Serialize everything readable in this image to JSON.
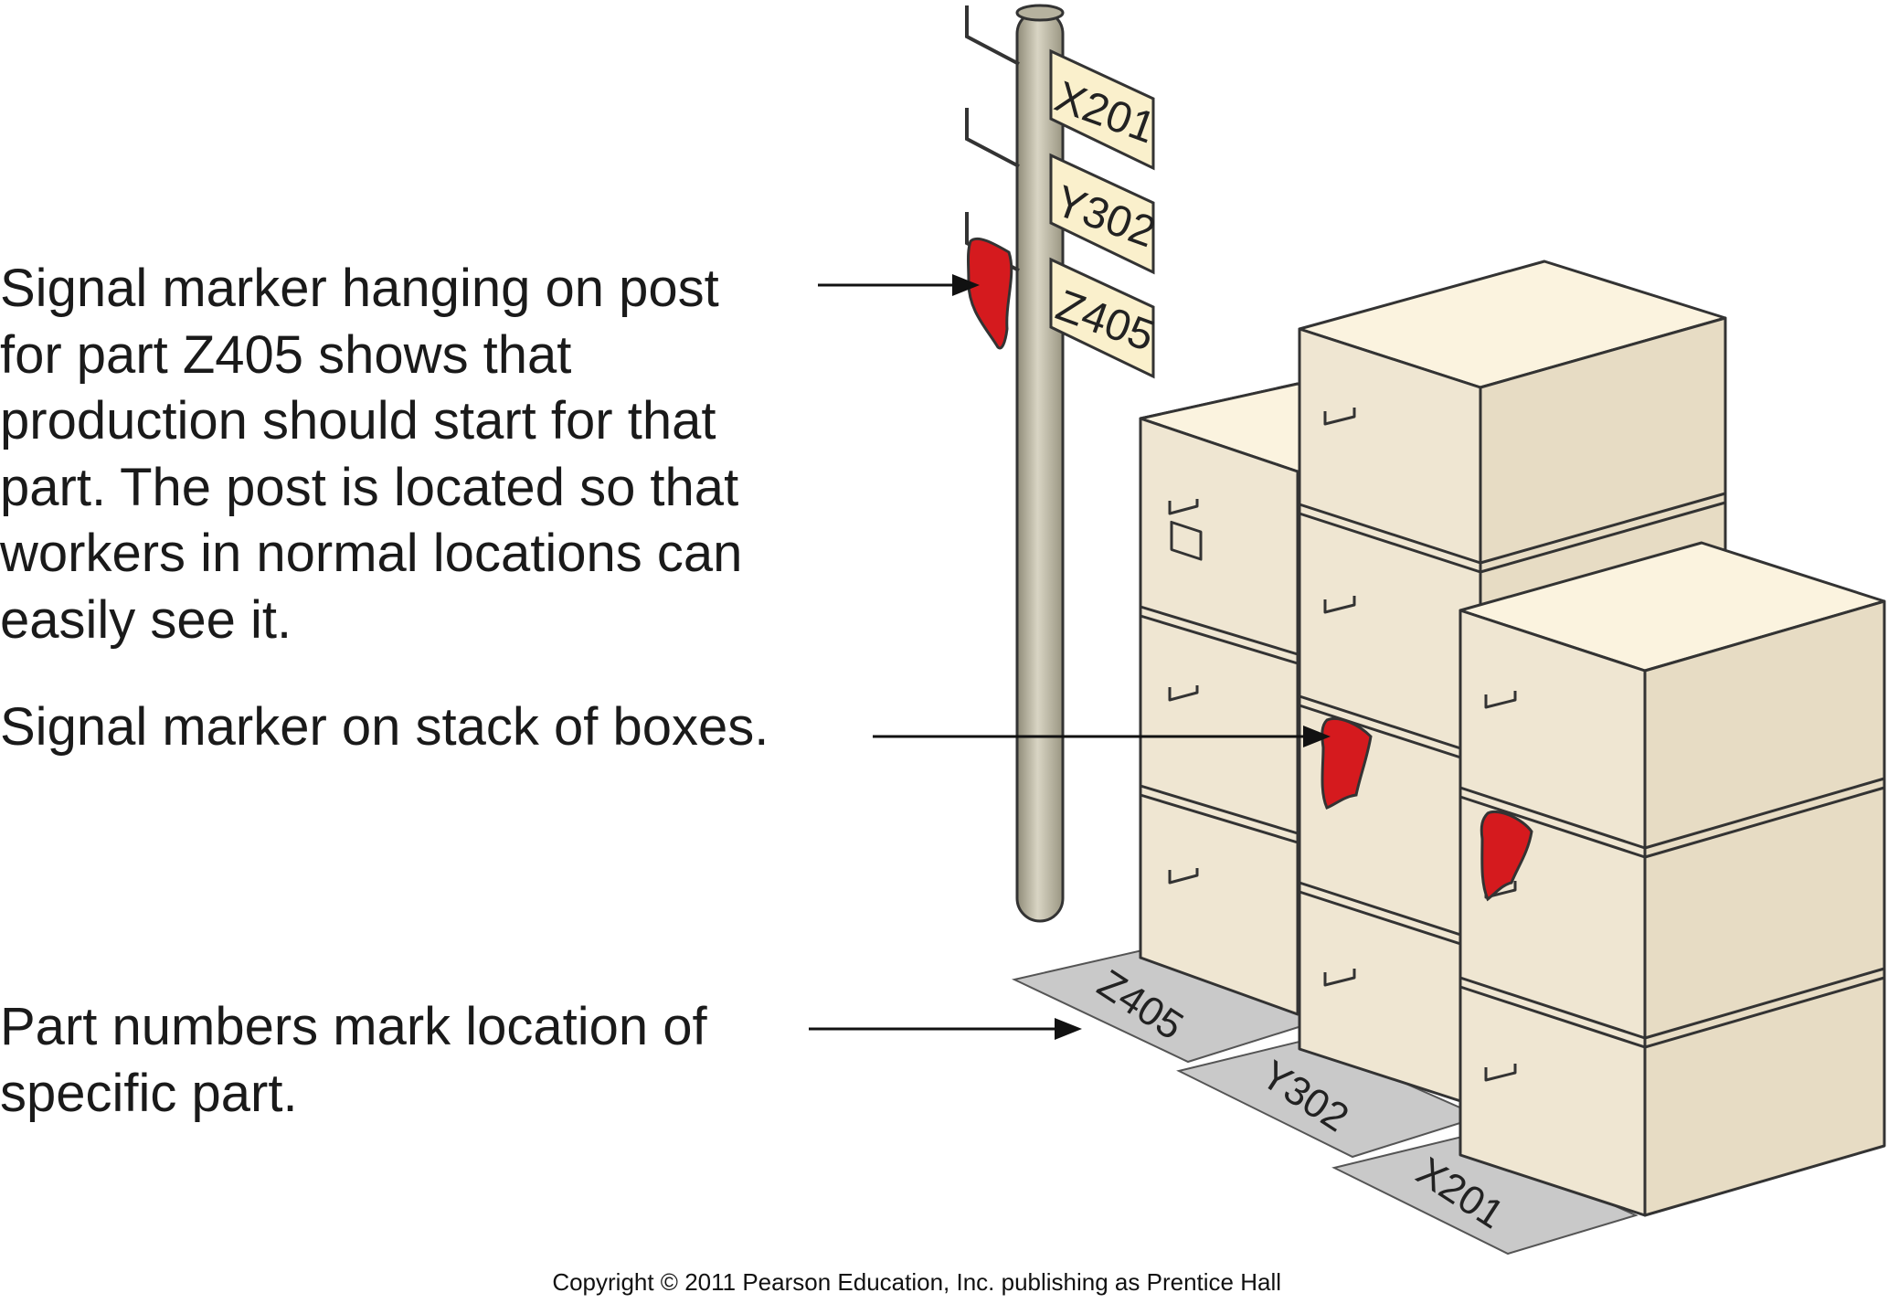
{
  "callouts": {
    "post_marker": "Signal marker hanging on post\nfor part Z405 shows that\nproduction should start for that\npart. The post is located so that\nworkers in normal locations can\neasily see it.",
    "box_marker": "Signal marker on stack of boxes.",
    "floor_numbers": "Part numbers mark location of\nspecific part."
  },
  "post_signs": [
    "X201",
    "Y302",
    "Z405"
  ],
  "floor_labels": [
    "Z405",
    "Y302",
    "X201"
  ],
  "copyright": "Copyright © 2011 Pearson Education, Inc. publishing as Prentice Hall",
  "colors": {
    "box_face": "#efe6d2",
    "box_top": "#fbf3df",
    "box_side": "#e7dcc4",
    "marker_red": "#d51a1e",
    "floor": "#c9c9c9",
    "post": "#c4c0ad",
    "sign": "#faf0cc"
  }
}
